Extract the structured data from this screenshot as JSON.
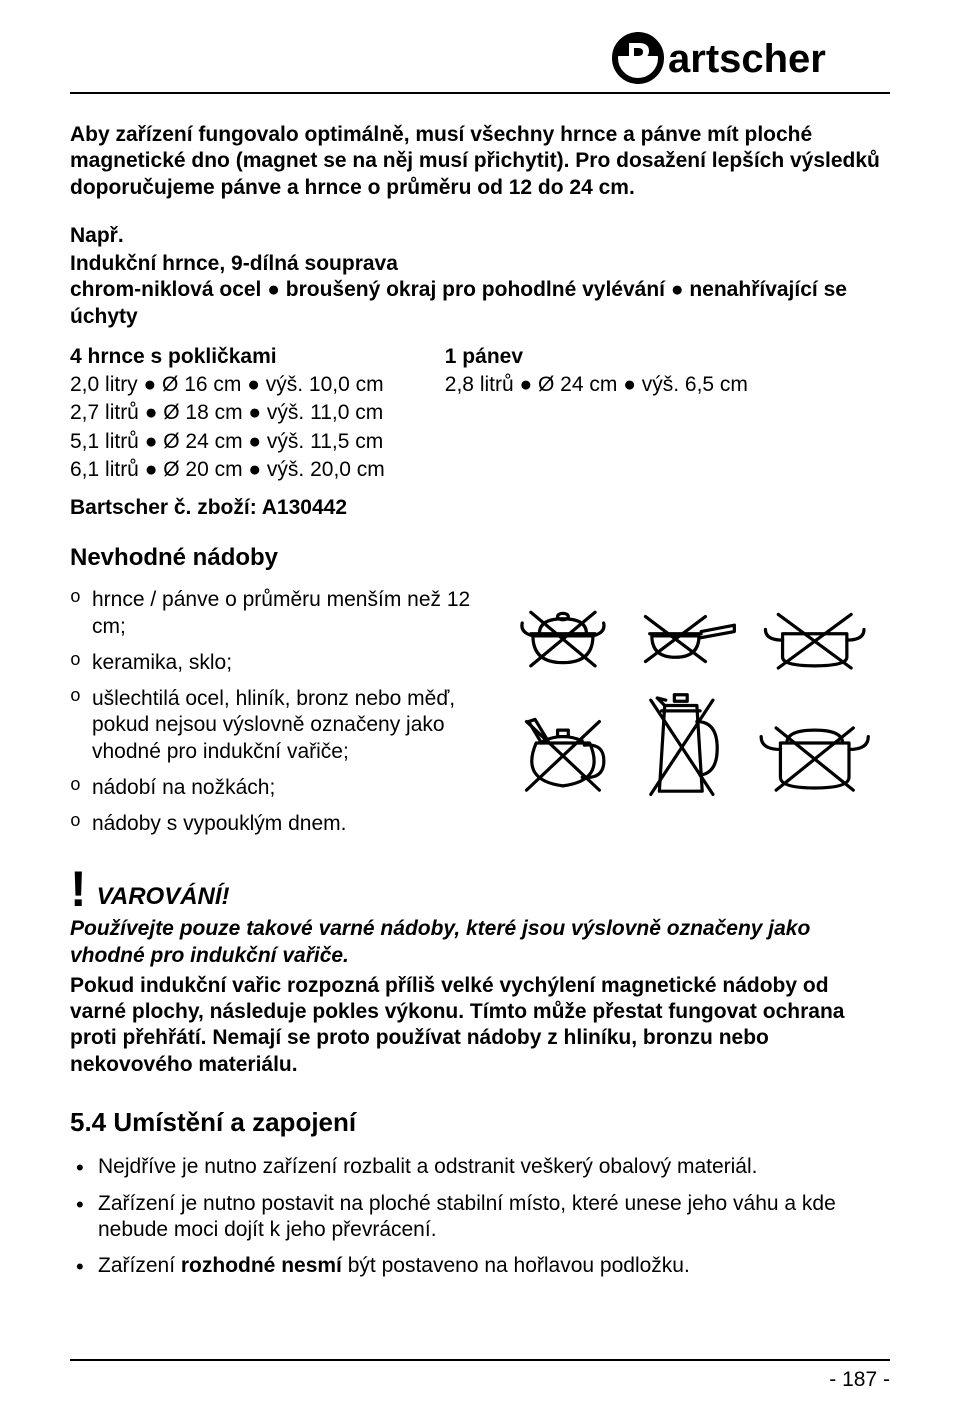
{
  "brand": "Bartscher",
  "lead": "Aby zařízení fungovalo optimálně, musí všechny hrnce a pánve mít ploché magnetické dno (magnet se na něj musí přichytit). Pro dosažení lepších výsledků doporučujeme pánve a hrnce o průměru od 12 do 24 cm.",
  "example": {
    "title": "Např.",
    "desc": "Indukční hrnce, 9-dílná souprava\nchrom-niklová ocel ● broušený okraj pro pohodlné vylévání ● nenahřívající se úchyty",
    "left": {
      "header": "4 hrnce s pokličkami",
      "lines": [
        "2,0 litry ● Ø 16 cm ● výš. 10,0 cm",
        "2,7 litrů ● Ø 18 cm ● výš. 11,0 cm",
        "5,1 litrů ● Ø 24 cm ● výš. 11,5 cm",
        "6,1 litrů ● Ø 20 cm ● výš. 20,0 cm"
      ]
    },
    "right": {
      "header": "1 pánev",
      "lines": [
        "2,8 litrů ● Ø 24 cm ● výš. 6,5 cm"
      ]
    },
    "article": "Bartscher č. zboží: A130442"
  },
  "unsuitable": {
    "heading": "Nevhodné nádoby",
    "items": [
      "hrnce / pánve o průměru menším než 12 cm;",
      "keramika, sklo;",
      "ušlechtilá ocel, hliník, bronz nebo měď, pokud nejsou výslovně označeny jako vhodné pro indukční vařiče;",
      "nádobí na nožkách;",
      "nádoby s vypouklým dnem."
    ]
  },
  "warning": {
    "title": "VAROVÁNÍ!",
    "p1": "Používejte pouze takové varné nádoby, které jsou výslovně označeny jako vhodné pro indukční vařiče.",
    "p2": "Pokud indukční vařic rozpozná příliš velké vychýlení magnetické nádoby od varné plochy, následuje pokles výkonu. Tímto může přestat fungovat ochrana proti přehřátí. Nemají se proto používat nádoby z hliníku, bronzu nebo nekovového materiálu."
  },
  "section": {
    "number": "5.4",
    "title": "Umístění a zapojení",
    "bullets": [
      {
        "pre": "Nejdříve je nutno zařízení rozbalit a odstranit veškerý obalový materiál.",
        "bold": ""
      },
      {
        "pre": "Zařízení je nutno postavit na ploché stabilní místo, které unese jeho váhu a kde nebude moci dojít k jeho převrácení.",
        "bold": ""
      },
      {
        "pre": "Zařízení ",
        "bold": "rozhodné nesmí",
        "post": " být postaveno na hořlavou podložku."
      }
    ]
  },
  "page": "- 187 -",
  "illus": {
    "stroke": "#000000",
    "stroke_width": 2.5
  }
}
